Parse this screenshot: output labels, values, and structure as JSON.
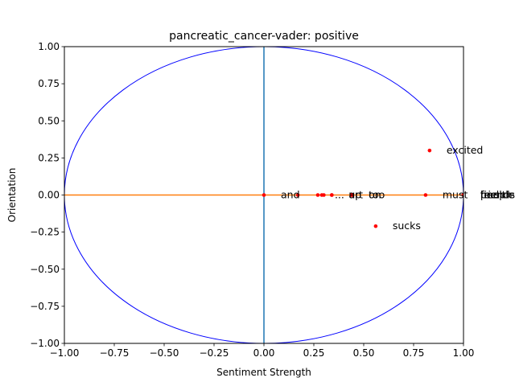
{
  "chart_data": {
    "type": "scatter",
    "title": "pancreatic_cancer-vader: positive",
    "xlabel": "Sentiment Strength",
    "ylabel": "Orientation",
    "xlim": [
      -1.0,
      1.0
    ],
    "ylim": [
      -1.0,
      1.0
    ],
    "xticks": [
      "−1.00",
      "−0.75",
      "−0.50",
      "−0.25",
      "0.00",
      "0.25",
      "0.50",
      "0.75",
      "1.00"
    ],
    "yticks": [
      "1.00",
      "0.75",
      "0.50",
      "0.25",
      "0.00",
      "−0.25",
      "−0.50",
      "−0.75",
      "−1.00"
    ],
    "grid": false,
    "unit_circle": true,
    "colors": {
      "circle": "#0000ff",
      "vertical_line": "#1f77b4",
      "horizontal_line": "#ff7f0e",
      "points": "#ff0000"
    },
    "points": [
      {
        "label": "and",
        "x": 0.0,
        "y": 0.0
      },
      {
        "label": "",
        "x": 0.17,
        "y": 0.0
      },
      {
        "label": "...",
        "x": 0.27,
        "y": 0.0
      },
      {
        "label": "",
        "x": 0.29,
        "y": 0.0
      },
      {
        "label": "",
        "x": 0.3,
        "y": 0.0
      },
      {
        "label": "up",
        "x": 0.34,
        "y": 0.0
      },
      {
        "label": "art",
        "x": 0.34,
        "y": 0.0
      },
      {
        "label": "too",
        "x": 0.44,
        "y": 0.0
      },
      {
        "label": "on",
        "x": 0.44,
        "y": 0.0
      },
      {
        "label": "sucks",
        "x": 0.56,
        "y": -0.21
      },
      {
        "label": "must",
        "x": 0.81,
        "y": 0.0
      },
      {
        "label": "excited",
        "x": 0.83,
        "y": 0.3
      },
      {
        "label": "fine",
        "x": 1.0,
        "y": 0.0
      },
      {
        "label": "feel",
        "x": 1.0,
        "y": 0.0
      },
      {
        "label": "people",
        "x": 1.0,
        "y": 0.0
      },
      {
        "label": "friends",
        "x": 1.0,
        "y": 0.0
      },
      {
        "label": "health",
        "x": 1.0,
        "y": 0.0
      }
    ]
  }
}
